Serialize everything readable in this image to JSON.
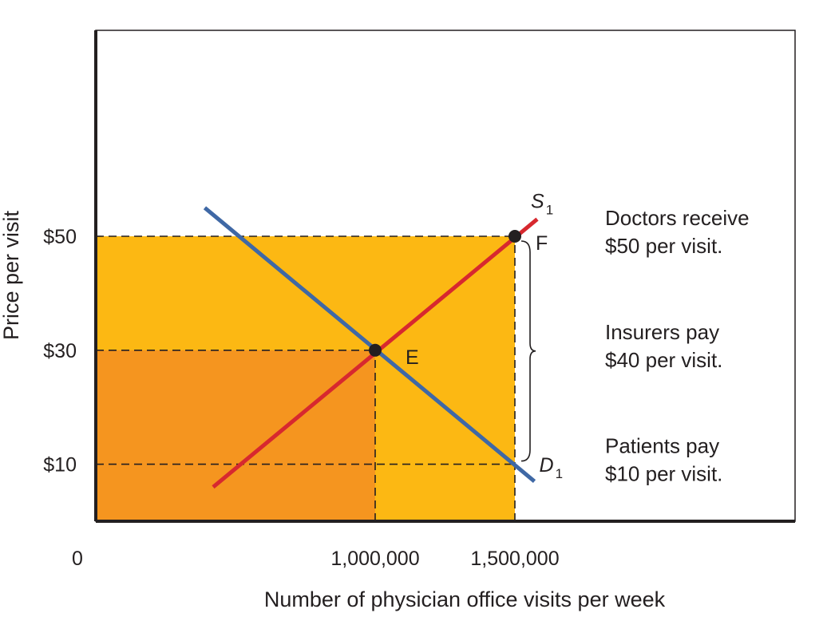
{
  "chart_data": {
    "type": "line",
    "xlabel": "Number of physician office visits per week",
    "ylabel": "Price per visit",
    "origin_label": "0",
    "xlim": [
      0,
      2400000
    ],
    "ylim": [
      0,
      70
    ],
    "x_ticks": [
      {
        "value": 1000000,
        "label": "1,000,000"
      },
      {
        "value": 1500000,
        "label": "1,500,000"
      }
    ],
    "y_ticks": [
      {
        "value": 10,
        "label": "$10"
      },
      {
        "value": 30,
        "label": "$30"
      },
      {
        "value": 50,
        "label": "$50"
      }
    ],
    "series": [
      {
        "name": "S",
        "subscript": "1",
        "kind": "supply",
        "color": "#d7282f",
        "points": [
          [
            420000,
            6
          ],
          [
            1580000,
            53
          ]
        ]
      },
      {
        "name": "D",
        "subscript": "1",
        "kind": "demand",
        "color": "#3f68a5",
        "points": [
          [
            390000,
            55
          ],
          [
            1570000,
            7
          ]
        ]
      }
    ],
    "points": [
      {
        "label": "E",
        "x": 1000000,
        "y": 30
      },
      {
        "label": "F",
        "x": 1500000,
        "y": 50
      }
    ],
    "shaded_regions": [
      {
        "color": "#fcb813",
        "x": [
          0,
          1500000
        ],
        "y": [
          0,
          50
        ]
      },
      {
        "color": "#f5951f",
        "x": [
          0,
          1000000
        ],
        "y": [
          0,
          30
        ]
      }
    ],
    "dashed_lines": [
      {
        "from": [
          0,
          50
        ],
        "to": [
          1500000,
          50
        ]
      },
      {
        "from": [
          0,
          30
        ],
        "to": [
          1000000,
          30
        ]
      },
      {
        "from": [
          0,
          10
        ],
        "to": [
          1500000,
          10
        ]
      },
      {
        "from": [
          1000000,
          0
        ],
        "to": [
          1000000,
          30
        ]
      },
      {
        "from": [
          1500000,
          0
        ],
        "to": [
          1500000,
          50
        ]
      }
    ],
    "brace": {
      "x": 1500000,
      "y_from": 10,
      "y_to": 50
    },
    "annotations": [
      {
        "lines": [
          "Doctors receive",
          "$50 per visit."
        ],
        "y": 50
      },
      {
        "lines": [
          "Insurers pay",
          "$40 per visit."
        ],
        "y": 30
      },
      {
        "lines": [
          "Patients pay",
          "$10 per visit."
        ],
        "y": 10
      }
    ],
    "colors": {
      "axis": "#231f20",
      "frame": "#231f20",
      "dash": "#231f20"
    }
  }
}
